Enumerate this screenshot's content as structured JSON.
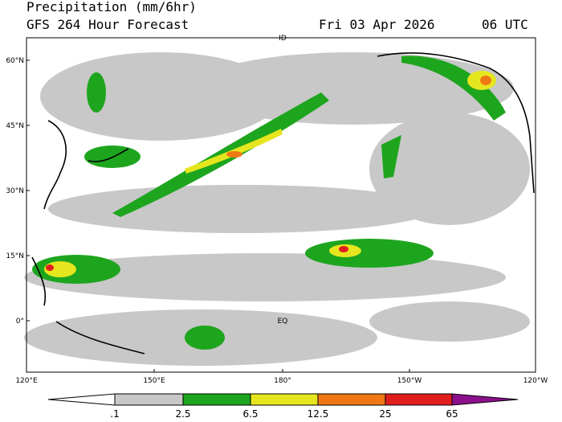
{
  "header": {
    "title": "Precipitation (mm/6hr)",
    "subtitle": "GFS 264 Hour Forecast",
    "date": "Fri 03 Apr 2026",
    "time": "06 UTC"
  },
  "map": {
    "lat_labels": [
      "60°N",
      "45°N",
      "30°N",
      "15°N",
      "0°"
    ],
    "lon_labels": [
      "120°E",
      "150°E",
      "180°",
      "150°W",
      "120°W"
    ],
    "annotations": [
      "EQ",
      "ID"
    ]
  },
  "legend": {
    "labels": [
      ".1",
      "2.5",
      "6.5",
      "12.5",
      "25",
      "65"
    ]
  }
}
